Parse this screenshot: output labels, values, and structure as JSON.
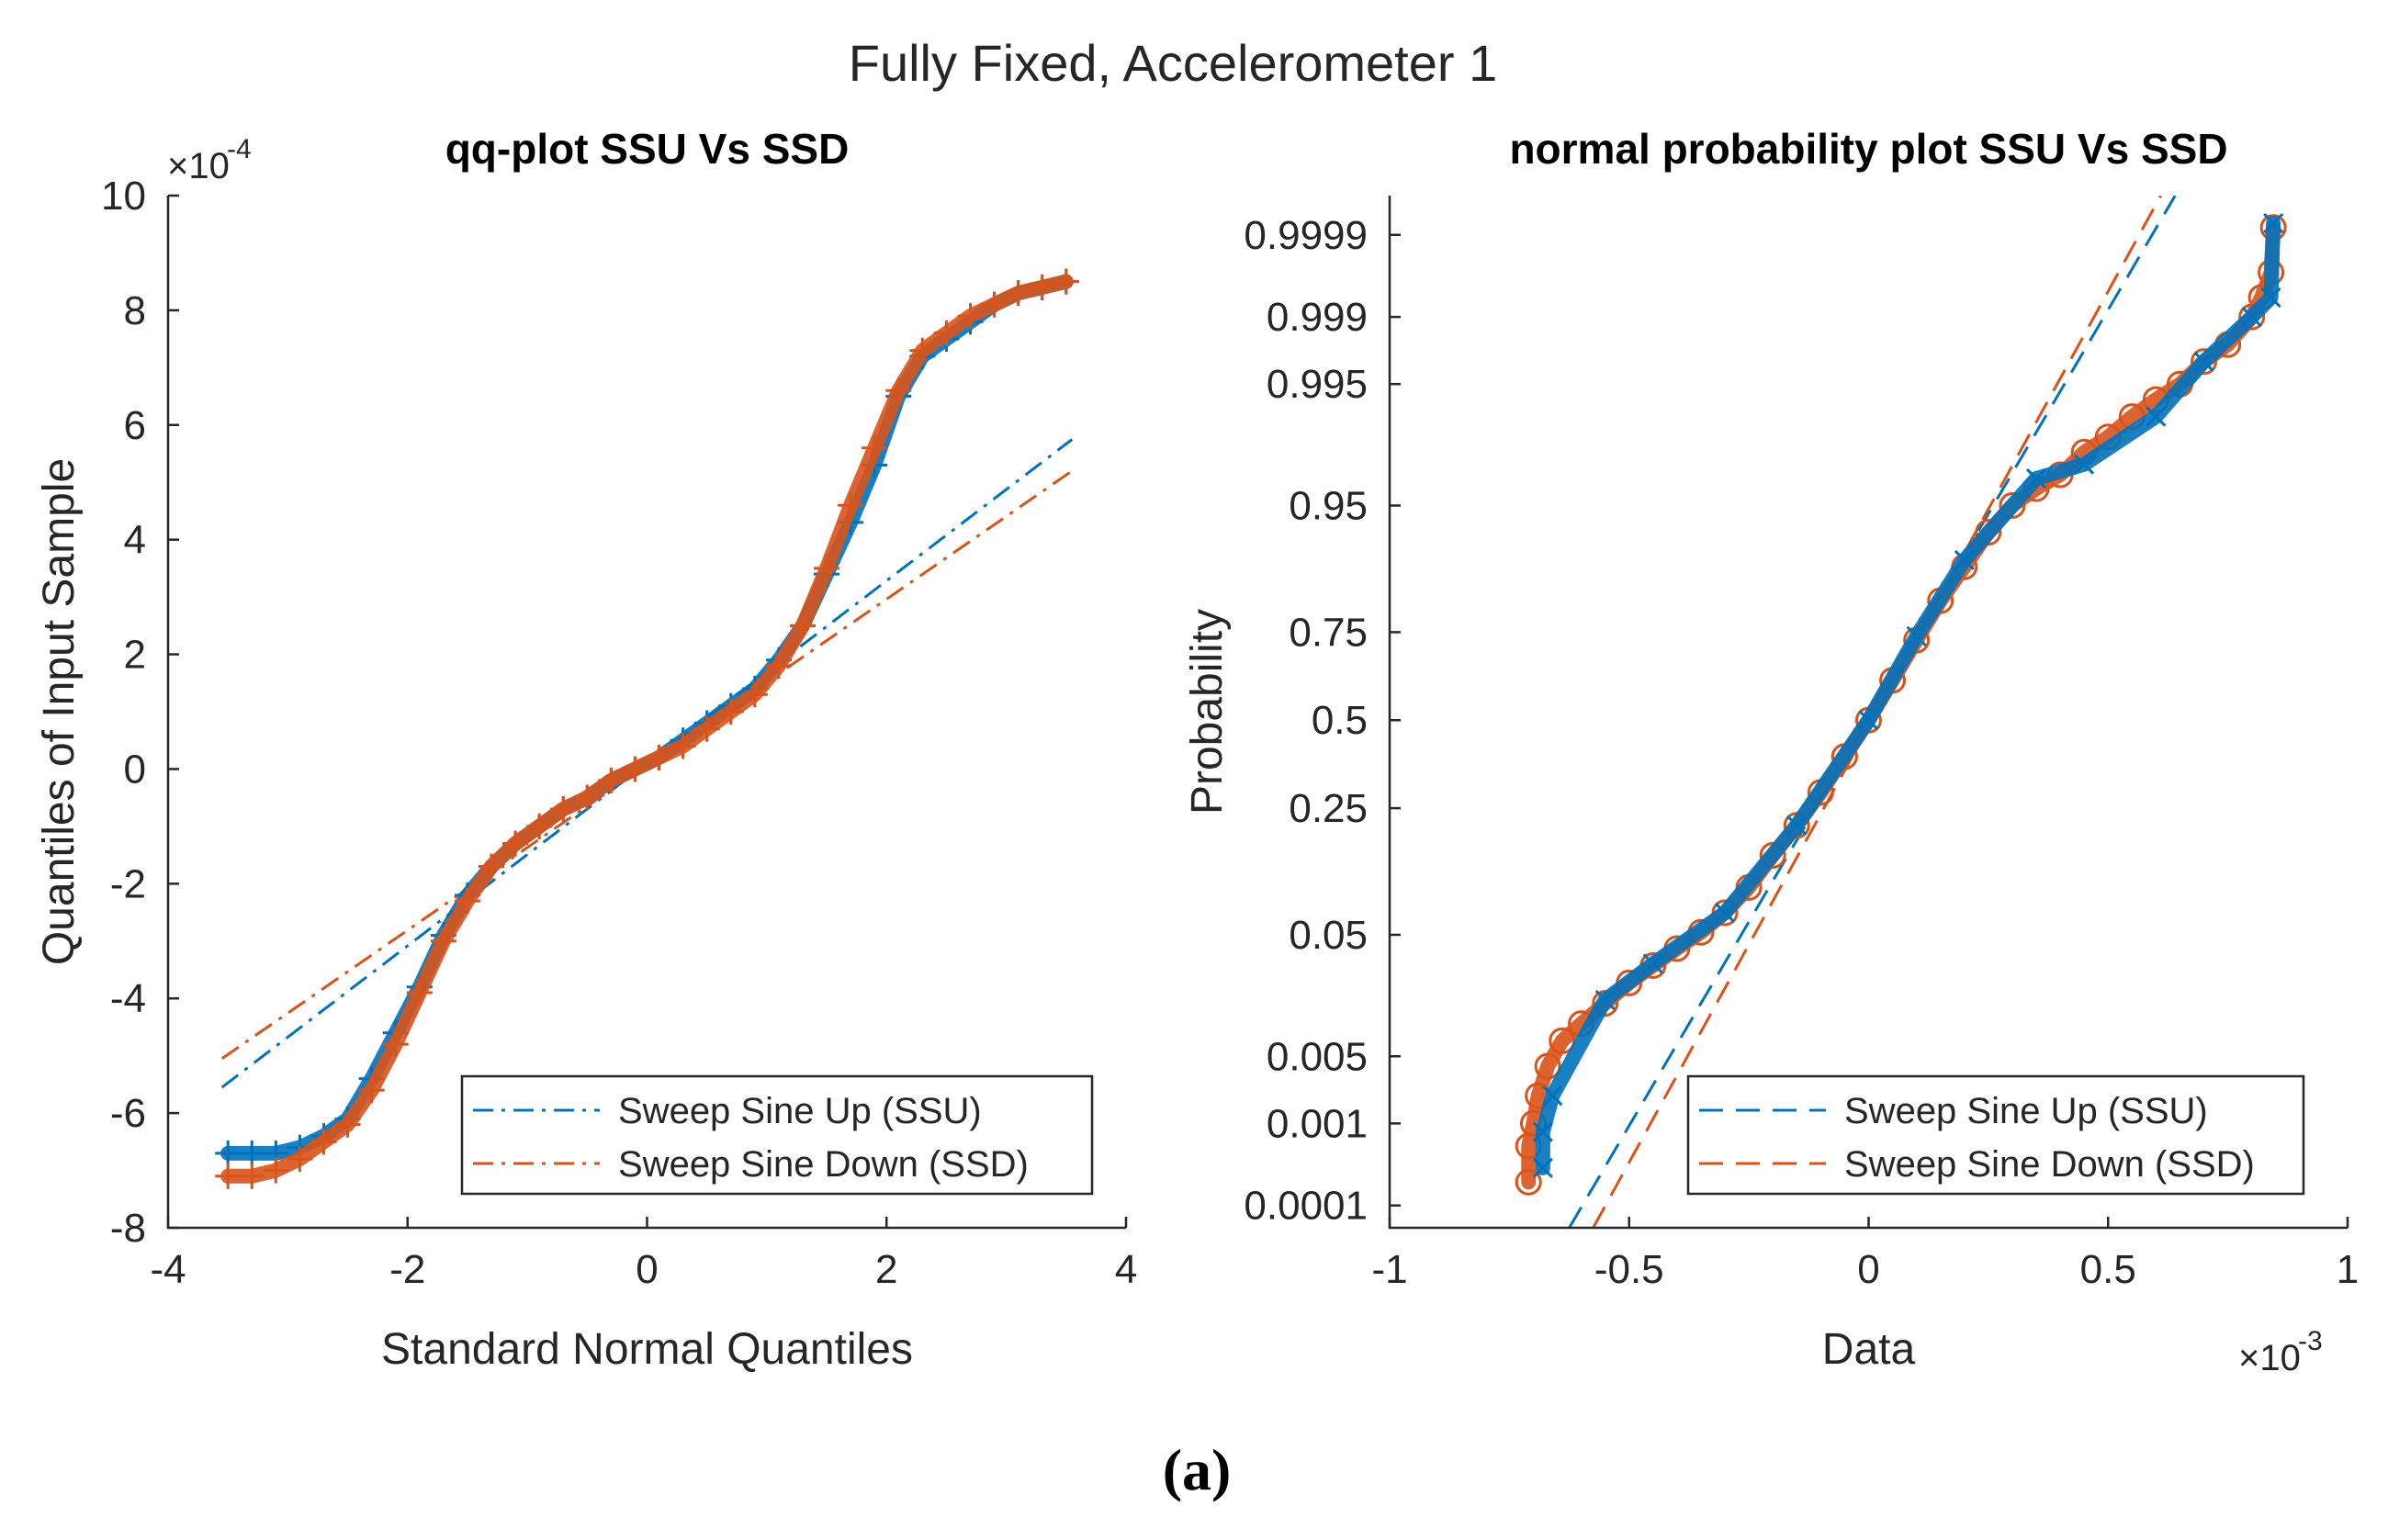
{
  "figure": {
    "suptitle": "Fully Fixed, Accelerometer 1",
    "caption": "(a)"
  },
  "colors": {
    "ssu": "#0072BD",
    "ssd": "#D95319",
    "axis": "#262626"
  },
  "chart_data": [
    {
      "type": "scatter",
      "title": "qq-plot SSU Vs SSD",
      "xlabel": "Standard Normal Quantiles",
      "ylabel": "Quantiles of Input Sample",
      "xlim": [
        -4,
        4
      ],
      "ylim": [
        -8,
        10
      ],
      "xticks": [
        -4,
        -2,
        0,
        2,
        4
      ],
      "xtick_labels": [
        "-4",
        "-2",
        "0",
        "2",
        "4"
      ],
      "yticks": [
        -8,
        -6,
        -4,
        -2,
        0,
        2,
        4,
        6,
        8,
        10
      ],
      "ytick_labels": [
        "-8",
        "-6",
        "-4",
        "-2",
        "0",
        "2",
        "4",
        "6",
        "8",
        "10"
      ],
      "exponent_label": "×10",
      "exponent_power": "-4",
      "legend_position": "bottom-right",
      "legend": [
        "Sweep Sine Up (SSU)",
        "Sweep Sine Down (SSD)"
      ],
      "series": [
        {
          "name": "Sweep Sine Up (SSU)",
          "marker": "plus",
          "color_key": "ssu",
          "points": [
            [
              -3.5,
              -6.7
            ],
            [
              -3.3,
              -6.7
            ],
            [
              -3.1,
              -6.7
            ],
            [
              -2.9,
              -6.6
            ],
            [
              -2.7,
              -6.4
            ],
            [
              -2.5,
              -6.1
            ],
            [
              -2.3,
              -5.4
            ],
            [
              -2.1,
              -4.6
            ],
            [
              -1.9,
              -3.8
            ],
            [
              -1.7,
              -2.9
            ],
            [
              -1.5,
              -2.2
            ],
            [
              -1.3,
              -1.7
            ],
            [
              -1.1,
              -1.3
            ],
            [
              -0.9,
              -1.0
            ],
            [
              -0.7,
              -0.7
            ],
            [
              -0.5,
              -0.5
            ],
            [
              -0.3,
              -0.2
            ],
            [
              -0.1,
              0.0
            ],
            [
              0.1,
              0.2
            ],
            [
              0.3,
              0.5
            ],
            [
              0.5,
              0.8
            ],
            [
              0.7,
              1.1
            ],
            [
              0.9,
              1.4
            ],
            [
              1.1,
              1.9
            ],
            [
              1.3,
              2.5
            ],
            [
              1.5,
              3.4
            ],
            [
              1.7,
              4.3
            ],
            [
              1.9,
              5.3
            ],
            [
              2.1,
              6.5
            ],
            [
              2.3,
              7.2
            ],
            [
              2.5,
              7.5
            ],
            [
              2.7,
              7.8
            ],
            [
              2.9,
              8.1
            ],
            [
              3.1,
              8.3
            ],
            [
              3.3,
              8.4
            ],
            [
              3.5,
              8.5
            ]
          ]
        },
        {
          "name": "Sweep Sine Down (SSD)",
          "marker": "plus",
          "color_key": "ssd",
          "points": [
            [
              -3.5,
              -7.1
            ],
            [
              -3.3,
              -7.1
            ],
            [
              -3.1,
              -7.0
            ],
            [
              -2.9,
              -6.8
            ],
            [
              -2.7,
              -6.5
            ],
            [
              -2.5,
              -6.2
            ],
            [
              -2.3,
              -5.6
            ],
            [
              -2.1,
              -4.8
            ],
            [
              -1.9,
              -3.9
            ],
            [
              -1.7,
              -3.0
            ],
            [
              -1.5,
              -2.3
            ],
            [
              -1.3,
              -1.7
            ],
            [
              -1.1,
              -1.3
            ],
            [
              -0.9,
              -1.0
            ],
            [
              -0.7,
              -0.7
            ],
            [
              -0.5,
              -0.5
            ],
            [
              -0.3,
              -0.2
            ],
            [
              -0.1,
              0.0
            ],
            [
              0.1,
              0.2
            ],
            [
              0.3,
              0.4
            ],
            [
              0.5,
              0.7
            ],
            [
              0.7,
              1.0
            ],
            [
              0.9,
              1.3
            ],
            [
              1.1,
              1.8
            ],
            [
              1.3,
              2.5
            ],
            [
              1.5,
              3.5
            ],
            [
              1.7,
              4.6
            ],
            [
              1.9,
              5.6
            ],
            [
              2.1,
              6.6
            ],
            [
              2.3,
              7.3
            ],
            [
              2.5,
              7.6
            ],
            [
              2.7,
              7.9
            ],
            [
              2.9,
              8.1
            ],
            [
              3.1,
              8.3
            ],
            [
              3.3,
              8.4
            ],
            [
              3.5,
              8.5
            ]
          ]
        }
      ],
      "reference_lines": [
        {
          "name": "SSU fit",
          "color_key": "ssu",
          "style": "dashdot",
          "from": [
            -3.55,
            -5.55
          ],
          "to": [
            3.55,
            5.75
          ]
        },
        {
          "name": "SSD fit",
          "color_key": "ssd",
          "style": "dashdot",
          "from": [
            -3.55,
            -5.05
          ],
          "to": [
            3.55,
            5.2
          ]
        }
      ]
    },
    {
      "type": "scatter",
      "title": "normal probability plot SSU Vs SSD",
      "xlabel": "Data",
      "ylabel": "Probability",
      "xlim": [
        -1,
        1
      ],
      "xticks": [
        -1,
        -0.5,
        0,
        0.5,
        1
      ],
      "xtick_labels": [
        "-1",
        "-0.5",
        "0",
        "0.5",
        "1"
      ],
      "exponent_label": "×10",
      "exponent_power": "-3",
      "y_scale": "normal-probability",
      "zlim": [
        -3.89,
        4.02
      ],
      "ytick_probabilities": [
        0.0001,
        0.001,
        0.005,
        0.05,
        0.25,
        0.5,
        0.75,
        0.95,
        0.995,
        0.999,
        0.9999
      ],
      "ytick_labels": [
        "0.0001",
        "0.001",
        "0.005",
        "0.05",
        "0.25",
        "0.5",
        "0.75",
        "0.95",
        "0.995",
        "0.999",
        "0.9999"
      ],
      "legend_position": "bottom-right",
      "legend": [
        "Sweep Sine Up (SSU)",
        "Sweep Sine Down (SSD)"
      ],
      "series": [
        {
          "name": "Sweep Sine Down (SSD)",
          "marker": "circle",
          "color_key": "ssd",
          "points": [
            [
              -0.71,
              0.0002
            ],
            [
              -0.71,
              0.00055
            ],
            [
              -0.7,
              0.001
            ],
            [
              -0.69,
              0.002
            ],
            [
              -0.67,
              0.004
            ],
            [
              -0.64,
              0.007
            ],
            [
              -0.6,
              0.01
            ],
            [
              -0.55,
              0.015
            ],
            [
              -0.5,
              0.022
            ],
            [
              -0.45,
              0.03
            ],
            [
              -0.4,
              0.04
            ],
            [
              -0.35,
              0.052
            ],
            [
              -0.3,
              0.07
            ],
            [
              -0.25,
              0.1
            ],
            [
              -0.2,
              0.15
            ],
            [
              -0.15,
              0.21
            ],
            [
              -0.1,
              0.29
            ],
            [
              -0.05,
              0.39
            ],
            [
              0,
              0.5
            ],
            [
              0.05,
              0.62
            ],
            [
              0.1,
              0.73
            ],
            [
              0.15,
              0.82
            ],
            [
              0.2,
              0.88
            ],
            [
              0.25,
              0.925
            ],
            [
              0.3,
              0.95
            ],
            [
              0.35,
              0.962
            ],
            [
              0.4,
              0.97
            ],
            [
              0.45,
              0.98
            ],
            [
              0.5,
              0.985
            ],
            [
              0.55,
              0.99
            ],
            [
              0.6,
              0.993
            ],
            [
              0.65,
              0.995
            ],
            [
              0.7,
              0.997
            ],
            [
              0.75,
              0.998
            ],
            [
              0.8,
              0.999
            ],
            [
              0.82,
              0.9994
            ],
            [
              0.84,
              0.9997
            ],
            [
              0.845,
              0.99992
            ]
          ]
        },
        {
          "name": "Sweep Sine Up (SSU)",
          "marker": "x",
          "color_key": "ssu",
          "points": [
            [
              -0.68,
              0.0003
            ],
            [
              -0.68,
              0.0008
            ],
            [
              -0.66,
              0.002
            ],
            [
              -0.55,
              0.016
            ],
            [
              -0.45,
              0.031
            ],
            [
              -0.3,
              0.07
            ],
            [
              -0.15,
              0.21
            ],
            [
              0,
              0.5
            ],
            [
              0.1,
              0.74
            ],
            [
              0.2,
              0.89
            ],
            [
              0.35,
              0.968
            ],
            [
              0.45,
              0.975
            ],
            [
              0.6,
              0.99
            ],
            [
              0.7,
              0.997
            ],
            [
              0.8,
              0.999
            ],
            [
              0.84,
              0.9994
            ],
            [
              0.845,
              0.99993
            ]
          ]
        }
      ],
      "reference_lines": [
        {
          "name": "SSU fit",
          "color_key": "ssu",
          "style": "dashed",
          "from": [
            -0.625,
            -3.89
          ],
          "to": [
            0.64,
            4.02
          ]
        },
        {
          "name": "SSD fit",
          "color_key": "ssd",
          "style": "dashed",
          "from": [
            -0.575,
            -3.89
          ],
          "to": [
            0.61,
            4.02
          ]
        }
      ]
    }
  ]
}
